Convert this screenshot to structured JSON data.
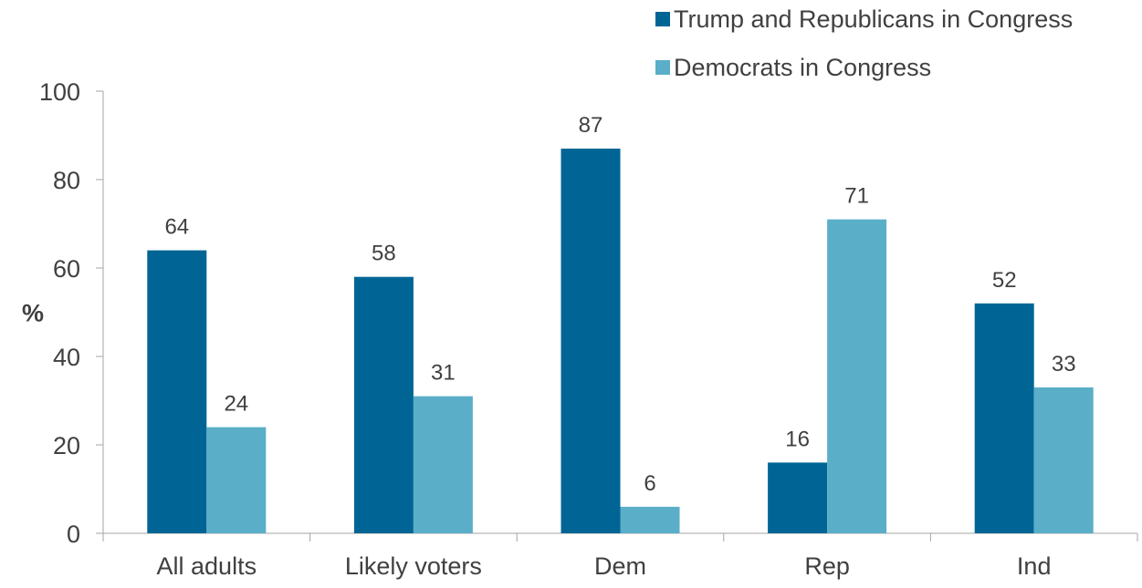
{
  "chart_data": {
    "type": "bar",
    "title": "",
    "xlabel": "",
    "ylabel": "%",
    "ylim": [
      0,
      100
    ],
    "yticks": [
      0,
      20,
      40,
      60,
      80,
      100
    ],
    "grid": false,
    "legend_position": "top-right",
    "categories": [
      "All adults",
      "Likely voters",
      "Dem",
      "Rep",
      "Ind"
    ],
    "series": [
      {
        "name": "Trump and Republicans in Congress",
        "color": "#006595",
        "values": [
          64,
          58,
          87,
          16,
          52
        ]
      },
      {
        "name": "Democrats in Congress",
        "color": "#5aaec8",
        "values": [
          24,
          31,
          6,
          71,
          33
        ]
      }
    ]
  }
}
